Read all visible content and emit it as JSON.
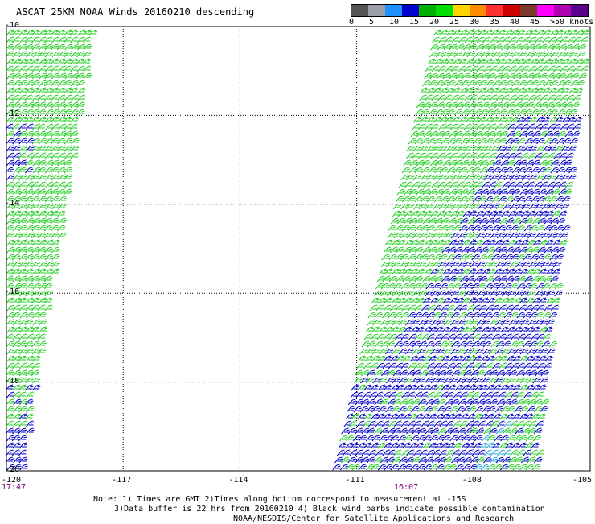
{
  "title": "ASCAT 25KM NOAA Winds 20160210 descending",
  "legend": {
    "colors": [
      "#555555",
      "#9aa0a6",
      "#1e90ff",
      "#0000cc",
      "#00b000",
      "#00dd00",
      "#ffd400",
      "#ff8c00",
      "#ff3030",
      "#cc0000",
      "#7a3b2e",
      "#ff00ff",
      "#b000b0",
      "#5a008c"
    ],
    "labels": [
      "0",
      "5",
      "10",
      "15",
      "20",
      "25",
      "30",
      "35",
      "40",
      "45",
      ">50 knots"
    ]
  },
  "axes": {
    "x_ticks": [
      "-120",
      "-117",
      "-114",
      "-111",
      "-108",
      "-105"
    ],
    "y_ticks": [
      "-10",
      "-12",
      "-14",
      "-16",
      "-18",
      "-20"
    ],
    "lon_range": [
      -120,
      -105
    ],
    "lat_range": [
      -20,
      -10
    ]
  },
  "times": {
    "left": "17:47",
    "right": "16:07"
  },
  "notes": {
    "line1": "Note: 1) Times are GMT 2)Times along bottom correspond to measurement at -15S",
    "line2": "3)Data buffer is 22 hrs from 20160210 4) Black wind barbs indicate possible contamination",
    "line3": "NOAA/NESDIS/Center for Satellite Applications and Research"
  },
  "wind_colors": {
    "blue": "#0000c8",
    "green": "#22cc22",
    "cyan": "#2aa8d8"
  }
}
